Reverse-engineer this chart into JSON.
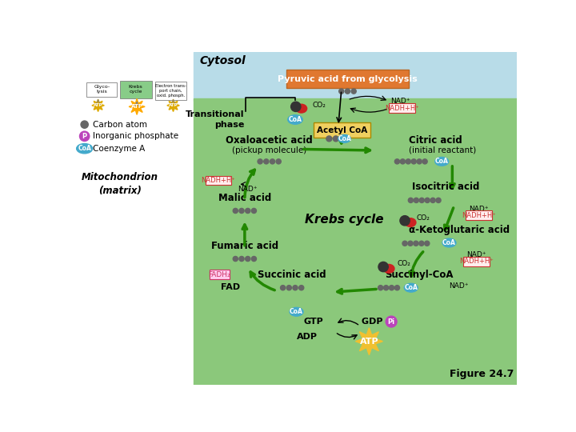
{
  "bg_left_color": "#ffffff",
  "bg_cytosol_color": "#b8dce8",
  "bg_mito_color": "#8bc87b",
  "pyruvic_box_color": "#e07830",
  "acetyl_box_color": "#f0d060",
  "nadh_box_bg": "#ffdddd",
  "nadh_box_fg": "#cc3333",
  "fadh_box_bg": "#ffccee",
  "fadh_box_fg": "#cc3366",
  "arrow_green": "#228800",
  "arrow_black": "#000000",
  "carbon_color": "#666666",
  "coa_color": "#44aacc",
  "phosphate_color": "#bb44bb",
  "co2_red": "#cc2222",
  "co2_dark": "#333333",
  "figure_label": "Figure 24.7",
  "cytosol_label": "Cytosol",
  "transitional_label": "Transitional\nphase",
  "mitochondrion_label": "Mitochondrion\n(matrix)",
  "pyruvic_text": "Pyruvic acid from glycolysis",
  "acetyl_text": "Acetyl CoA",
  "oxaloacetic_line1": "Oxaloacetic acid",
  "oxaloacetic_line2": "(pickup molecule)",
  "citric_line1": "Citric acid",
  "citric_line2": "(initial reactant)",
  "isocitric_text": "Isocitric acid",
  "ketoglutaric_text": "α-Ketoglutaric acid",
  "succinyl_text": "Succinyl-CoA",
  "succinic_text": "Succinic acid",
  "fumaric_text": "Fumaric acid",
  "malic_text": "Malic acid",
  "krebs_text": "Krebs cycle"
}
